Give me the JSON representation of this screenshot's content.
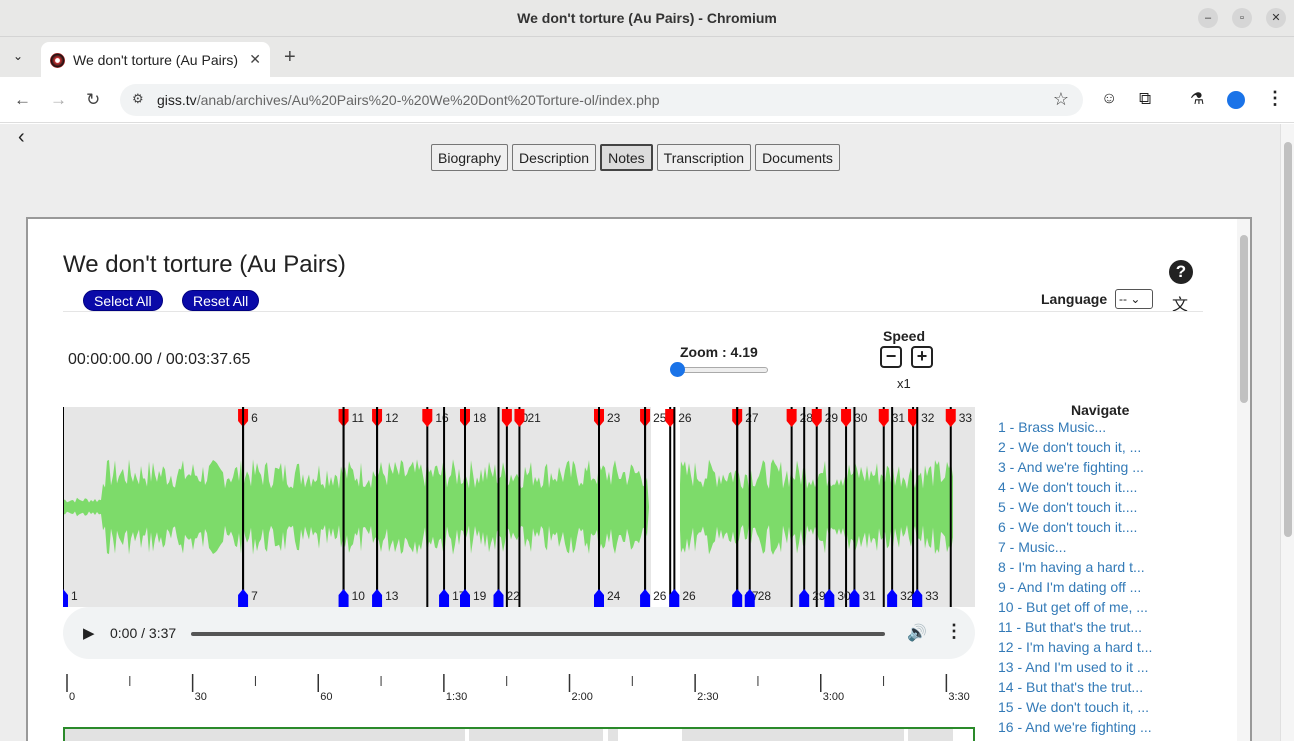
{
  "window": {
    "title": "We don't torture (Au Pairs) - Chromium"
  },
  "tab": {
    "label": "We don't torture (Au Pairs)"
  },
  "address": {
    "host": "giss.tv",
    "path": "/anab/archives/Au%20Pairs%20-%20We%20Dont%20Torture-ol/index.php"
  },
  "topnav": [
    "Biography",
    "Description",
    "Notes",
    "Transcription",
    "Documents"
  ],
  "topnav_active": "Notes",
  "page": {
    "title": "We don't torture (Au Pairs)",
    "select_all": "Select All",
    "reset_all": "Reset All",
    "language_label": "Language",
    "language_value": "--",
    "help": "?",
    "timecode": "00:00:00.00 / 00:03:37.65",
    "zoom": "Zoom : 4.19",
    "zoom_level": 0,
    "speed_label": "Speed",
    "speed_minus": "−",
    "speed_plus": "+",
    "speed_value": "x1"
  },
  "player": {
    "time": "0:00 / 3:37"
  },
  "timeline": {
    "labels": [
      "0",
      "30",
      "60",
      "1:30",
      "2:00",
      "2:30",
      "3:00",
      "3:30"
    ],
    "seconds": [
      0,
      30,
      60,
      90,
      120,
      150,
      180,
      210
    ]
  },
  "markers": {
    "top_labels": [
      {
        "t": 43,
        "label": "6"
      },
      {
        "t": 67,
        "label": "11"
      },
      {
        "t": 75,
        "label": "12"
      },
      {
        "t": 87,
        "label": "16"
      },
      {
        "t": 96,
        "label": "18"
      },
      {
        "t": 106,
        "label": "20"
      },
      {
        "t": 109,
        "label": "21"
      },
      {
        "t": 128,
        "label": "23"
      },
      {
        "t": 139,
        "label": "25"
      },
      {
        "t": 145,
        "label": "26"
      },
      {
        "t": 161,
        "label": "27"
      },
      {
        "t": 174,
        "label": "28"
      },
      {
        "t": 180,
        "label": "29"
      },
      {
        "t": 187,
        "label": "30"
      },
      {
        "t": 196,
        "label": "31"
      },
      {
        "t": 203,
        "label": "32"
      },
      {
        "t": 212,
        "label": "33"
      }
    ],
    "bottom_labels": [
      {
        "t": 0,
        "label": "1"
      },
      {
        "t": 43,
        "label": "7"
      },
      {
        "t": 67,
        "label": "10"
      },
      {
        "t": 75,
        "label": "13"
      },
      {
        "t": 91,
        "label": "17"
      },
      {
        "t": 96,
        "label": "19"
      },
      {
        "t": 104,
        "label": "22"
      },
      {
        "t": 128,
        "label": "24"
      },
      {
        "t": 139,
        "label": "26"
      },
      {
        "t": 146,
        "label": "26"
      },
      {
        "t": 161,
        "label": "27"
      },
      {
        "t": 164,
        "label": "28"
      },
      {
        "t": 177,
        "label": "29"
      },
      {
        "t": 183,
        "label": "30"
      },
      {
        "t": 189,
        "label": "31"
      },
      {
        "t": 198,
        "label": "32"
      },
      {
        "t": 204,
        "label": "33"
      }
    ]
  },
  "navigate": {
    "title": "Navigate",
    "items": [
      "1 - Brass Music...",
      "2 - We don't touch it, ...",
      "3 - And we're fighting ...",
      "4 - We don't touch it....",
      "5 - We don't touch it....",
      "6 - We don't touch it....",
      "7 - Music...",
      "8 - I'm having a hard t...",
      "9 - And I'm dating off ...",
      "10 - But get off of me, ...",
      "11 - But that's the trut...",
      "12 - I'm having a hard t...",
      "13 - And I'm used to it ...",
      "14 - But that's the trut...",
      "15 - We don't touch it, ...",
      "16 - And we're fighting ..."
    ]
  },
  "colors": {
    "marker_red": "#ff0000",
    "marker_blue": "#0000ff",
    "marker_green": "#00cc00",
    "wave": "#7ddb6a",
    "link": "#337ab7",
    "button_blue": "#0a0aa8"
  }
}
